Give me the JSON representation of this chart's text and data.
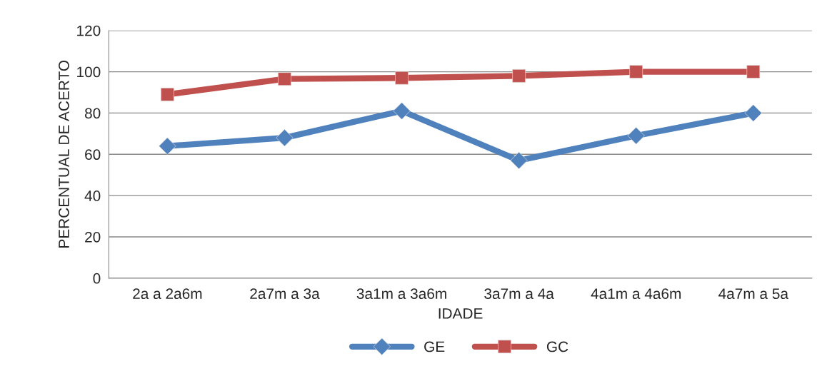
{
  "chart_data": {
    "type": "line",
    "xlabel": "IDADE",
    "ylabel": "PERCENTUAL DE ACERTO",
    "categories": [
      "2a a 2a6m",
      "2a7m a 3a",
      "3a1m a 3a6m",
      "3a7m a 4a",
      "4a1m a 4a6m",
      "4a7m a 5a"
    ],
    "series": [
      {
        "name": "GE",
        "color": "#4f81bd",
        "marker": "diamond",
        "values": [
          64,
          68,
          81,
          57,
          69,
          80
        ]
      },
      {
        "name": "GC",
        "color": "#c0504d",
        "marker": "square",
        "values": [
          89,
          96.5,
          97,
          98,
          100,
          100
        ]
      }
    ],
    "ylim": [
      0,
      120
    ],
    "yticks": [
      0,
      20,
      40,
      60,
      80,
      100,
      120
    ],
    "grid": "y",
    "legend": "bottom"
  }
}
